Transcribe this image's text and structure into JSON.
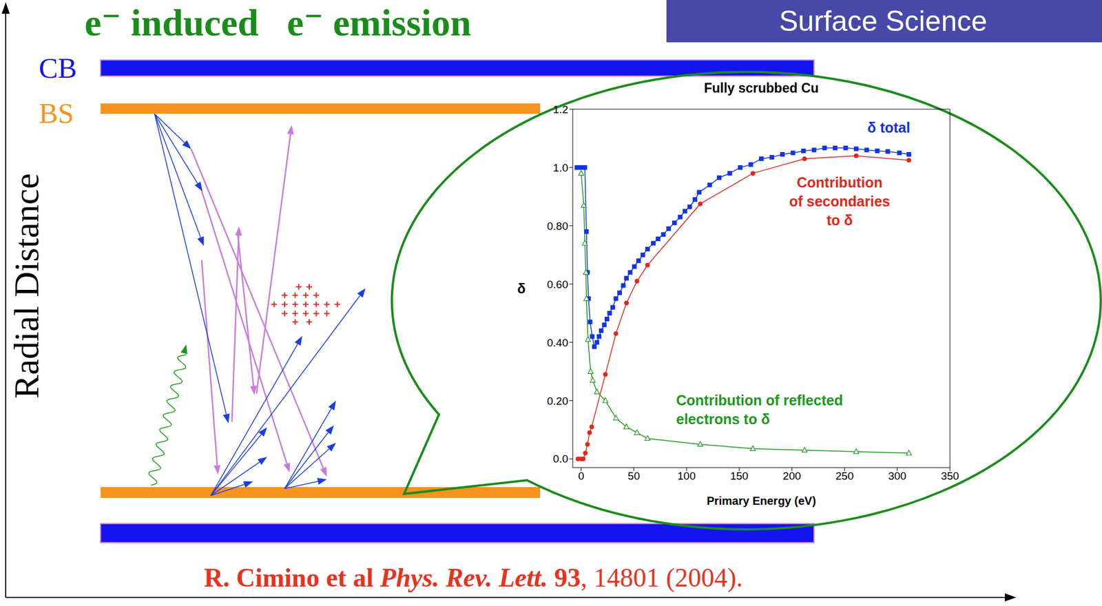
{
  "title": "e⁻ induced   e⁻ emission",
  "badge": "Surface Science",
  "y_axis_label": "Radial Distance",
  "layers": [
    {
      "label": "CB",
      "color": "#1414ee"
    },
    {
      "label": "BS",
      "color": "#f7931e"
    }
  ],
  "chart_data": {
    "type": "line",
    "title": "Fully scrubbed Cu",
    "x_label": "Primary Energy (eV)",
    "y_label": "δ",
    "xlim": [
      -8,
      350
    ],
    "xticks": [
      0,
      50,
      100,
      150,
      200,
      250,
      300,
      350
    ],
    "ylim": [
      -0.03,
      1.2
    ],
    "yticks": [
      {
        "value": 0,
        "label": "0.0"
      },
      {
        "value": 0.2,
        "label": "0.20"
      },
      {
        "value": 0.4,
        "label": "0.40"
      },
      {
        "value": 0.6,
        "label": "0.60"
      },
      {
        "value": 0.8,
        "label": "0.80"
      },
      {
        "value": 1,
        "label": "1.0"
      },
      1.2
    ],
    "grid": false,
    "series": [
      {
        "name": "δ total",
        "color": "#1034e0",
        "marker": "square",
        "x": [
          -4,
          -2,
          0,
          2,
          3.5,
          5,
          6,
          7,
          8.5,
          10.5,
          12.5,
          15,
          17,
          19,
          22,
          24.5,
          27,
          30,
          33,
          36.5,
          40,
          43,
          46.5,
          50.5,
          54.5,
          58.5,
          63,
          68.5,
          73,
          78,
          83,
          88.5,
          94,
          98.5,
          103,
          108,
          112,
          122,
          131,
          141,
          151,
          161,
          171,
          181,
          191,
          201,
          211,
          221,
          231,
          241,
          251,
          261,
          271,
          281,
          291,
          302,
          311
        ],
        "values": [
          1,
          1,
          1,
          1,
          1,
          0.78,
          0.64,
          0.55,
          0.47,
          0.42,
          0.385,
          0.4,
          0.42,
          0.44,
          0.46,
          0.48,
          0.5,
          0.52,
          0.55,
          0.57,
          0.595,
          0.62,
          0.64,
          0.66,
          0.68,
          0.7,
          0.72,
          0.74,
          0.755,
          0.77,
          0.79,
          0.81,
          0.83,
          0.85,
          0.865,
          0.89,
          0.915,
          0.94,
          0.965,
          0.98,
          1.0,
          1.01,
          1.03,
          1.035,
          1.045,
          1.05,
          1.057,
          1.06,
          1.067,
          1.067,
          1.067,
          1.064,
          1.06,
          1.057,
          1.055,
          1.05,
          1.045
        ]
      },
      {
        "name": "Contribution of secondaries to δ",
        "color": "#e0281a",
        "marker": "circle",
        "x": [
          -3,
          0,
          2,
          4,
          6,
          8,
          10,
          23,
          33,
          43,
          53,
          63,
          113,
          163,
          212,
          261,
          311
        ],
        "values": [
          0,
          0,
          0,
          0.02,
          0.05,
          0.09,
          0.11,
          0.29,
          0.43,
          0.535,
          0.61,
          0.665,
          0.875,
          0.98,
          1.03,
          1.04,
          1.025
        ]
      },
      {
        "name": "Contribution of reflected electrons to δ",
        "color": "#1a9a1a",
        "marker": "triangle",
        "x": [
          0,
          2.5,
          3.5,
          4.5,
          5,
          6.5,
          9,
          11,
          15,
          23,
          33,
          43,
          53,
          63,
          113,
          163,
          212,
          261,
          311
        ],
        "values": [
          0.98,
          0.87,
          0.74,
          0.64,
          0.55,
          0.41,
          0.3,
          0.27,
          0.23,
          0.2,
          0.14,
          0.11,
          0.09,
          0.07,
          0.05,
          0.035,
          0.03,
          0.025,
          0.02
        ]
      }
    ]
  },
  "citation": [
    {
      "text": "R. Cimino et al ",
      "style": "bold"
    },
    {
      "text": "Phys. Rev. Lett.",
      "style": "bold-italic"
    },
    {
      "text": " 93",
      "style": "bold"
    },
    {
      "text": ", 14801 (2004).",
      "style": "normal"
    }
  ]
}
